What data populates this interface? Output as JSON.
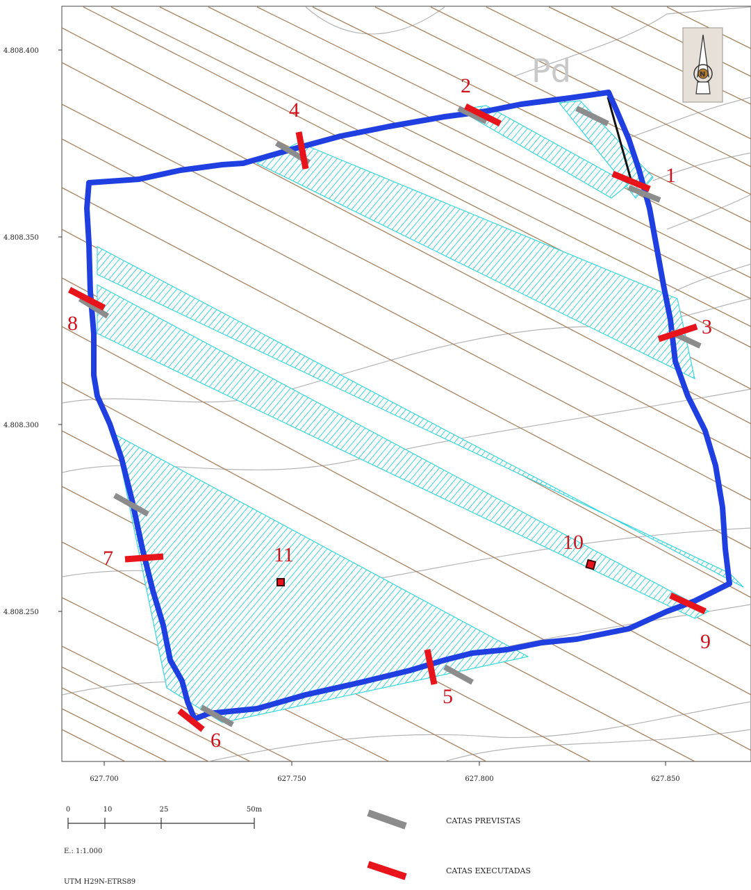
{
  "map": {
    "zone_label": "Pd",
    "y_ticks": [
      "4.808.400",
      "4.808.350",
      "4.808.300",
      "4.808.250"
    ],
    "x_ticks": [
      "627.700",
      "627.750",
      "627.800",
      "627.850"
    ],
    "north_arrow_letter": "N",
    "pits": [
      {
        "id": "1",
        "label": "1",
        "planned": true,
        "executed": true
      },
      {
        "id": "2",
        "label": "2",
        "planned": true,
        "executed": true
      },
      {
        "id": "3",
        "label": "3",
        "planned": true,
        "executed": true
      },
      {
        "id": "4",
        "label": "4",
        "planned": true,
        "executed": true
      },
      {
        "id": "5",
        "label": "5",
        "planned": true,
        "executed": true
      },
      {
        "id": "6",
        "label": "6",
        "planned": true,
        "executed": true
      },
      {
        "id": "7",
        "label": "7",
        "planned": true,
        "executed": true
      },
      {
        "id": "8",
        "label": "8",
        "planned": true,
        "executed": true
      },
      {
        "id": "9",
        "label": "9",
        "planned": false,
        "executed": true
      },
      {
        "id": "10",
        "label": "10",
        "planned": false,
        "executed": true
      },
      {
        "id": "11",
        "label": "11",
        "planned": false,
        "executed": true
      }
    ],
    "colors": {
      "boundary": "#1f3fe0",
      "executed": "#e8141c",
      "planned": "#8c8c8c",
      "hatch": "#38d6dc",
      "contour_brown": "#a07a5c",
      "contour_grey": "#b0b0b0"
    }
  },
  "scale_bar": {
    "ticks": [
      "0",
      "10",
      "25",
      "50m"
    ],
    "ratio": "E.: 1:1.000",
    "crs": "UTM H29N-ETRS89"
  },
  "legend": {
    "planned_label": "CATAS PREVISTAS",
    "executed_label": "CATAS EXECUTADAS"
  }
}
